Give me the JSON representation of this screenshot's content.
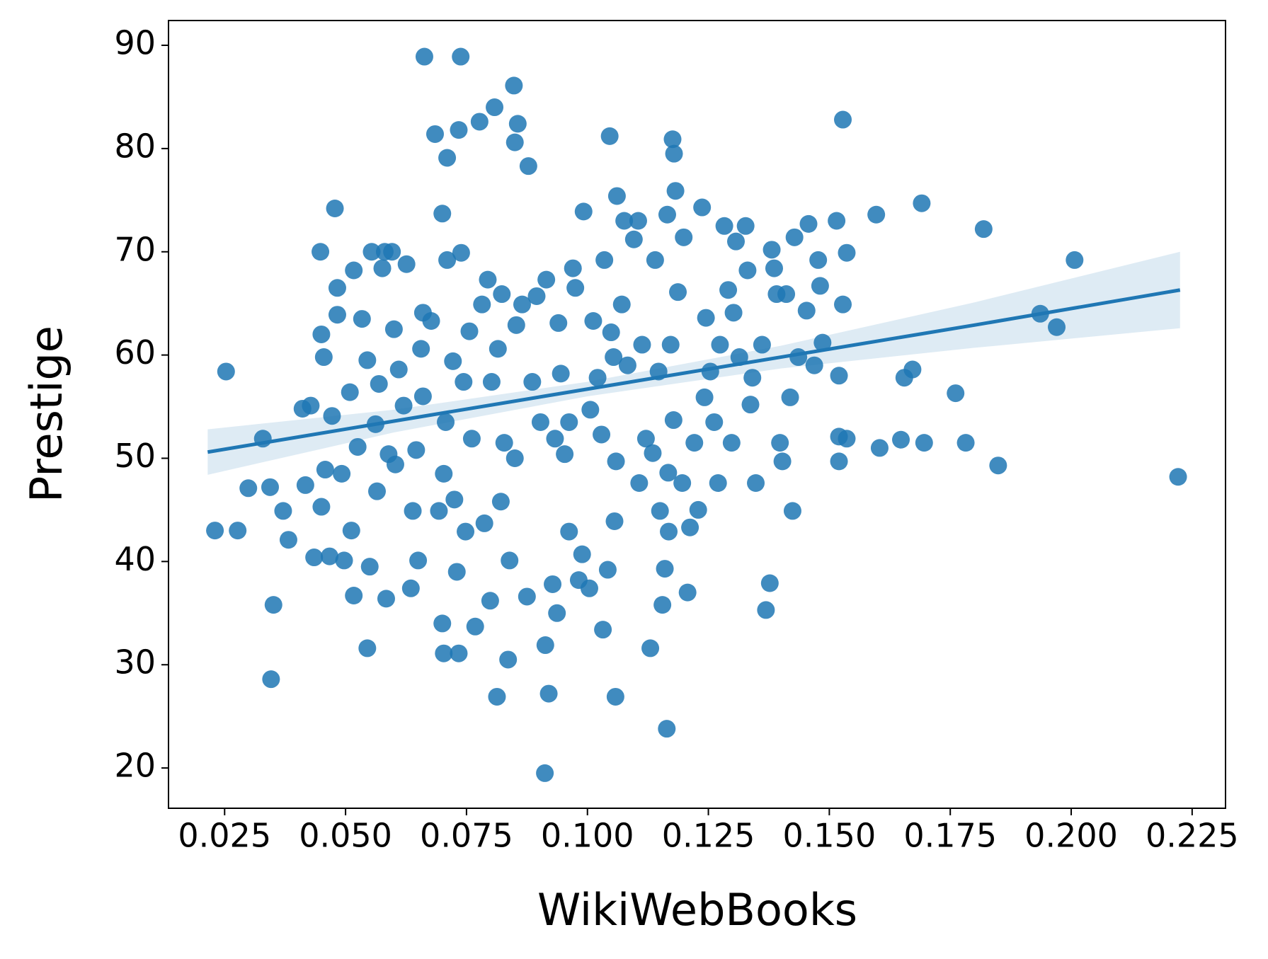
{
  "chart_data": {
    "type": "scatter",
    "x_label": "WikiWebBooks",
    "y_label": "Prestige",
    "color": "#1f77b4",
    "xlim": [
      0.0134,
      0.2319
    ],
    "ylim": [
      16.1,
      92.4
    ],
    "xticks": [
      0.025,
      {
        "value": 0.05,
        "label": "0.050"
      },
      0.075,
      {
        "value": 0.1,
        "label": "0.100"
      },
      0.125,
      {
        "value": 0.15,
        "label": "0.150"
      },
      0.175,
      {
        "value": 0.2,
        "label": "0.200"
      },
      0.225
    ],
    "yticks": [
      20,
      30,
      40,
      50,
      60,
      70,
      80,
      90
    ],
    "x": [
      0.023,
      0.0253,
      0.0277,
      0.0299,
      0.0329,
      0.0344,
      0.0346,
      0.0351,
      0.0371,
      0.0382,
      0.0411,
      0.0417,
      0.0428,
      0.0435,
      0.0448,
      0.045,
      0.0455,
      0.045,
      0.0458,
      0.0467,
      0.0478,
      0.0483,
      0.0483,
      0.0472,
      0.0492,
      0.0497,
      0.0509,
      0.0512,
      0.0517,
      0.0517,
      0.0525,
      0.0534,
      0.0545,
      0.0545,
      0.055,
      0.0554,
      0.0562,
      0.0565,
      0.0569,
      0.0576,
      0.0581,
      0.0584,
      0.0589,
      0.0596,
      0.06,
      0.0603,
      0.061,
      0.062,
      0.0626,
      0.0635,
      0.0639,
      0.0646,
      0.065,
      0.0656,
      0.066,
      0.066,
      0.0663,
      0.0677,
      0.0685,
      0.0693,
      0.07,
      0.07,
      0.0703,
      0.0703,
      0.0707,
      0.071,
      0.071,
      0.0722,
      0.0725,
      0.073,
      0.0734,
      0.0734,
      0.0738,
      0.0739,
      0.0744,
      0.0748,
      0.0756,
      0.0761,
      0.0768,
      0.0777,
      0.0782,
      0.0787,
      0.0794,
      0.0799,
      0.0802,
      0.0808,
      0.0813,
      0.0815,
      0.0821,
      0.0823,
      0.0828,
      0.0836,
      0.0839,
      0.0848,
      0.085,
      0.085,
      0.0853,
      0.0856,
      0.0865,
      0.0875,
      0.0878,
      0.0886,
      0.0895,
      0.0903,
      0.0912,
      0.0913,
      0.0915,
      0.092,
      0.0928,
      0.0933,
      0.0937,
      0.094,
      0.0945,
      0.0953,
      0.0962,
      0.0962,
      0.097,
      0.0975,
      0.0982,
      0.0989,
      0.0992,
      0.1004,
      0.1006,
      0.1012,
      0.1021,
      0.1029,
      0.1032,
      0.1035,
      0.1042,
      0.1046,
      0.1049,
      0.1054,
      0.1058,
      0.1059,
      0.1056,
      0.1061,
      0.1071,
      0.1076,
      0.1083,
      0.1096,
      0.1105,
      0.1107,
      0.1113,
      0.1121,
      0.113,
      0.1135,
      0.114,
      0.1147,
      0.115,
      0.1155,
      0.116,
      0.1164,
      0.1165,
      0.1167,
      0.1168,
      0.1172,
      0.1176,
      0.1178,
      0.1179,
      0.1182,
      0.1187,
      0.1196,
      0.1199,
      0.1207,
      0.1212,
      0.1221,
      0.1229,
      0.1237,
      0.1242,
      0.1245,
      0.1254,
      0.1262,
      0.127,
      0.1274,
      0.1283,
      0.1291,
      0.1298,
      0.1302,
      0.1307,
      0.1314,
      0.1327,
      0.1331,
      0.1337,
      0.1341,
      0.1348,
      0.1361,
      0.1369,
      0.1377,
      0.1381,
      0.1386,
      0.1391,
      0.1398,
      0.1403,
      0.1411,
      0.1419,
      0.1424,
      0.1428,
      0.1436,
      0.1453,
      0.1457,
      0.1469,
      0.1477,
      0.1481,
      0.1486,
      0.1515,
      0.152,
      0.152,
      0.152,
      0.1528,
      0.1528,
      0.1536,
      0.1536,
      0.1597,
      0.1604,
      0.1648,
      0.1655,
      0.1672,
      0.1691,
      0.1696,
      0.1761,
      0.1782,
      0.1819,
      0.1849,
      0.1936,
      0.197,
      0.2007,
      0.2221
    ],
    "values": [
      43.0,
      58.4,
      43.0,
      47.1,
      51.9,
      47.2,
      28.6,
      35.8,
      44.9,
      42.1,
      54.8,
      47.4,
      55.1,
      40.4,
      70.0,
      62.0,
      59.8,
      45.3,
      48.9,
      40.5,
      74.2,
      66.5,
      63.9,
      54.1,
      48.5,
      40.1,
      56.4,
      43.0,
      68.2,
      36.7,
      51.1,
      63.5,
      59.5,
      31.6,
      39.5,
      70.0,
      53.3,
      46.8,
      57.2,
      68.4,
      70.0,
      36.4,
      50.4,
      70.0,
      62.5,
      49.4,
      58.6,
      55.1,
      68.8,
      37.4,
      44.9,
      50.8,
      40.1,
      60.6,
      64.1,
      56.0,
      88.9,
      63.3,
      81.4,
      44.9,
      73.7,
      34.0,
      31.1,
      48.5,
      53.5,
      69.2,
      79.1,
      59.4,
      46.0,
      39.0,
      81.8,
      31.1,
      88.9,
      69.9,
      57.4,
      42.9,
      62.3,
      51.9,
      33.7,
      82.6,
      64.9,
      43.7,
      67.3,
      36.2,
      57.4,
      84.0,
      26.9,
      60.6,
      45.8,
      65.9,
      51.5,
      30.5,
      40.1,
      86.1,
      80.6,
      50.0,
      62.9,
      82.4,
      64.9,
      36.6,
      78.3,
      57.4,
      65.7,
      53.5,
      19.5,
      31.9,
      67.3,
      27.2,
      37.8,
      51.9,
      35.0,
      63.1,
      58.2,
      50.4,
      42.9,
      53.5,
      68.4,
      66.5,
      38.2,
      40.7,
      73.9,
      37.4,
      54.7,
      63.3,
      57.8,
      52.3,
      33.4,
      69.2,
      39.2,
      81.2,
      62.2,
      59.8,
      26.9,
      49.7,
      43.9,
      75.4,
      64.9,
      73.0,
      59.0,
      71.2,
      73.0,
      47.6,
      61.0,
      51.9,
      31.6,
      50.5,
      69.2,
      58.4,
      44.9,
      35.8,
      39.3,
      23.8,
      73.6,
      48.6,
      42.9,
      61.0,
      80.9,
      53.7,
      79.5,
      75.9,
      66.1,
      47.6,
      71.4,
      37.0,
      43.3,
      51.5,
      45.0,
      74.3,
      55.9,
      63.6,
      58.4,
      53.5,
      47.6,
      61.0,
      72.5,
      66.3,
      51.5,
      64.1,
      71.0,
      59.8,
      72.5,
      68.2,
      55.2,
      57.8,
      47.6,
      61.0,
      35.3,
      37.9,
      70.2,
      68.4,
      65.9,
      51.5,
      49.7,
      65.9,
      55.9,
      44.9,
      71.4,
      59.8,
      64.3,
      72.7,
      59.0,
      69.2,
      66.7,
      61.2,
      73.0,
      49.7,
      58.0,
      52.1,
      82.8,
      64.9,
      69.9,
      51.9,
      73.6,
      51.0,
      51.8,
      57.8,
      58.6,
      74.7,
      51.5,
      56.3,
      51.5,
      72.2,
      49.3,
      64.0,
      62.7,
      69.2,
      48.2
    ],
    "regression": {
      "x": [
        0.0215,
        0.06,
        0.1,
        0.14,
        0.18,
        0.2225
      ],
      "y": [
        50.6,
        53.6,
        56.7,
        59.8,
        62.9,
        66.3
      ],
      "ci_lower": [
        48.4,
        52.5,
        56.0,
        58.7,
        60.7,
        62.6
      ],
      "ci_upper": [
        52.8,
        54.7,
        57.4,
        60.9,
        65.1,
        70.0
      ]
    }
  }
}
